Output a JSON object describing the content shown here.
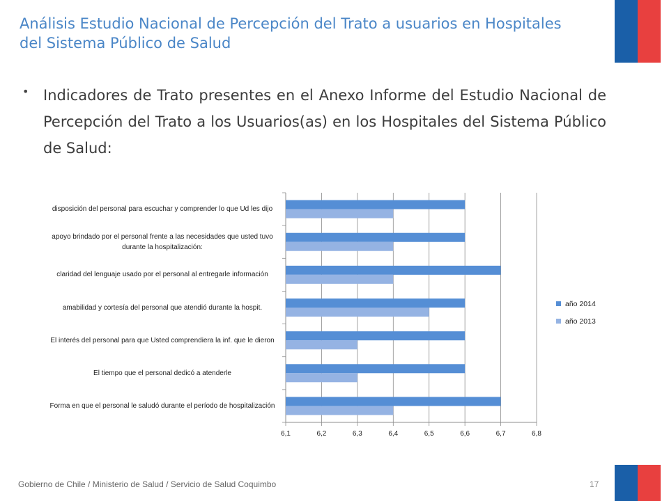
{
  "slide": {
    "title": "Análisis Estudio Nacional de Percepción del Trato a usuarios en Hospitales del Sistema Público de Salud",
    "bullet_text": "Indicadores de Trato presentes en el Anexo Informe del Estudio Nacional de Percepción del Trato a los Usuarios(as) en los Hospitales del Sistema Público de Salud:",
    "footer": "Gobierno de Chile / Ministerio de Salud / Servicio de Salud Coquimbo",
    "page_number": "17",
    "colors": {
      "title": "#4a86c7",
      "flag_blue": "#1a5fa8",
      "flag_red": "#e8403f"
    }
  },
  "chart_data": {
    "type": "bar",
    "orientation": "horizontal",
    "categories": [
      "disposición del personal para escuchar y comprender lo que Ud les dijo",
      "apoyo brindado por el personal frente a las necesidades que usted tuvo durante la hospitalización:",
      "claridad del lenguaje usado por el personal al entregarle información",
      "amabilidad y cortesía del personal que atendió durante la hospit.",
      "El interés del personal para que Usted comprendiera la inf. que le dieron",
      "El tiempo que el personal dedicó a atenderle",
      "Forma en que el personal le saludó durante el período de hospitalización"
    ],
    "series": [
      {
        "name": "año 2014",
        "color": "#558ed5",
        "values": [
          6.6,
          6.6,
          6.7,
          6.6,
          6.6,
          6.6,
          6.7
        ]
      },
      {
        "name": "año 2013",
        "color": "#95b3e3",
        "values": [
          6.4,
          6.4,
          6.4,
          6.5,
          6.3,
          6.3,
          6.4
        ]
      }
    ],
    "xlim": [
      6.1,
      6.8
    ],
    "ticks": [
      "6,1",
      "6,2",
      "6,3",
      "6,4",
      "6,5",
      "6,6",
      "6,7",
      "6,8"
    ],
    "grid": true,
    "legend_position": "right"
  }
}
